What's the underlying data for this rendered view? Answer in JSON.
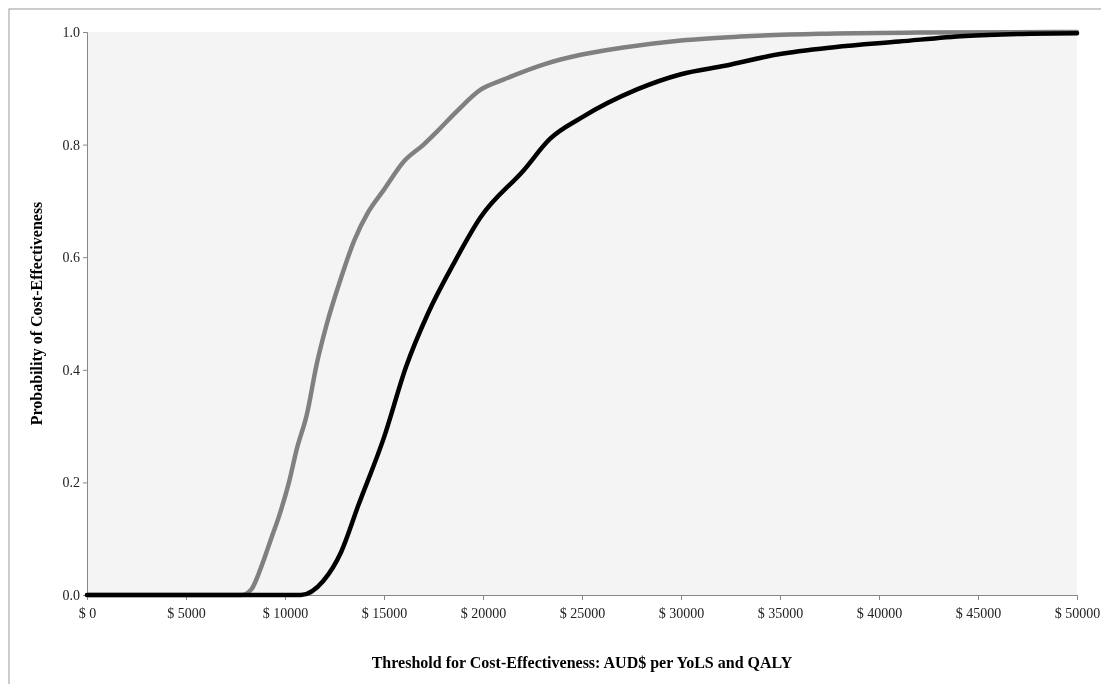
{
  "chart_data": {
    "type": "line",
    "xlabel": "Threshold for Cost-Effectiveness: AUD$ per YoLS and QALY",
    "ylabel": "Probability of Cost-Effectiveness",
    "xlim": [
      0,
      50000
    ],
    "ylim": [
      0,
      1
    ],
    "xticks": [
      {
        "value": 0,
        "label": "$ 0"
      },
      {
        "value": 5000,
        "label": "$ 5000"
      },
      {
        "value": 10000,
        "label": "$ 10000"
      },
      {
        "value": 15000,
        "label": "$ 15000"
      },
      {
        "value": 20000,
        "label": "$ 20000"
      },
      {
        "value": 25000,
        "label": "$ 25000"
      },
      {
        "value": 30000,
        "label": "$ 30000"
      },
      {
        "value": 35000,
        "label": "$ 35000"
      },
      {
        "value": 40000,
        "label": "$ 40000"
      },
      {
        "value": 45000,
        "label": "$ 45000"
      },
      {
        "value": 50000,
        "label": "$ 50000"
      }
    ],
    "yticks": [
      {
        "value": 0,
        "label": "0.0"
      },
      {
        "value": 0.2,
        "label": "0.2"
      },
      {
        "value": 0.4,
        "label": "0.4"
      },
      {
        "value": 0.6,
        "label": "0.6"
      },
      {
        "value": 0.8,
        "label": "0.8"
      },
      {
        "value": 1,
        "label": "1.0"
      }
    ],
    "grid": false,
    "marker": "none",
    "line_style": "solid",
    "series": [
      {
        "color": "#808080",
        "x": [
          0,
          7800,
          8300,
          8800,
          9300,
          9700,
          10200,
          10600,
          11100,
          11600,
          12100,
          12800,
          13500,
          14200,
          15000,
          16000,
          17000,
          17700,
          18700,
          19900,
          21000,
          23200,
          25000,
          27000,
          30000,
          33000,
          37000,
          42000,
          50000
        ],
        "values": [
          0,
          0,
          0.01,
          0.05,
          0.1,
          0.14,
          0.2,
          0.26,
          0.32,
          0.41,
          0.48,
          0.56,
          0.63,
          0.68,
          0.72,
          0.77,
          0.8,
          0.824,
          0.86,
          0.898,
          0.915,
          0.944,
          0.96,
          0.972,
          0.985,
          0.992,
          0.997,
          0.999,
          1.0
        ]
      },
      {
        "color": "#000000",
        "x": [
          0,
          10800,
          11930,
          12830,
          13690,
          15000,
          16110,
          17220,
          18540,
          19860,
          22070,
          23380,
          24930,
          27780,
          30000,
          32220,
          34850,
          37730,
          41010,
          44340,
          47630,
          50000
        ],
        "values": [
          0,
          0,
          0.025,
          0.076,
          0.158,
          0.28,
          0.405,
          0.5,
          0.59,
          0.67,
          0.755,
          0.81,
          0.847,
          0.898,
          0.925,
          0.94,
          0.96,
          0.973,
          0.983,
          0.993,
          0.997,
          0.998
        ]
      }
    ]
  }
}
